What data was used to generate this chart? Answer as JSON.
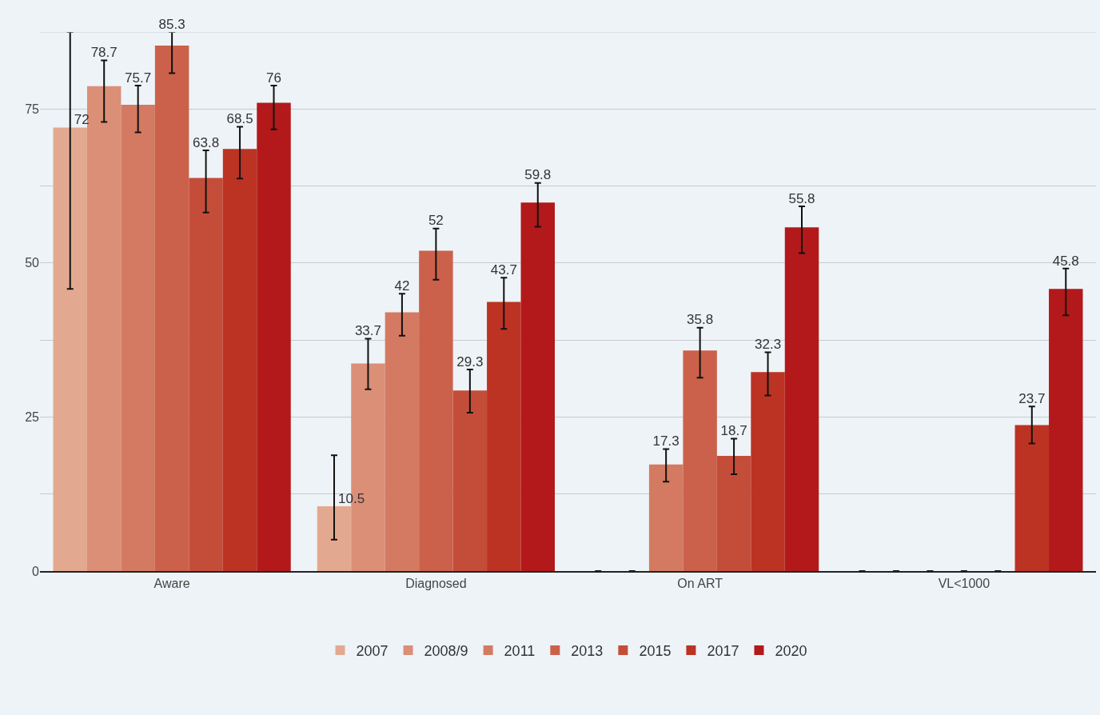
{
  "chart_data": {
    "type": "bar",
    "categories": [
      "Aware",
      "Diagnosed",
      "On ART",
      "VL<1000"
    ],
    "ylim": [
      0,
      87.5
    ],
    "yticks": [
      0,
      {
        "value": 12.5,
        "label": null
      },
      25,
      {
        "value": 37.5,
        "label": null
      },
      50,
      {
        "value": 62.5,
        "label": null
      },
      75,
      {
        "value": 87.5,
        "label": null
      }
    ],
    "grid": "y",
    "legend": "bottom",
    "tick_labels": "xy",
    "series": [
      {
        "name": "2007",
        "color": "#e3a990",
        "values": [
          72,
          10.5,
          0,
          0
        ],
        "value_labels": [
          "72",
          "10.5",
          null,
          null
        ],
        "errors": [
          [
            45.8,
            87.5
          ],
          [
            5.1,
            18.8
          ],
          [
            0,
            0
          ],
          [
            0,
            0
          ]
        ]
      },
      {
        "name": "2008/9",
        "color": "#db8f77",
        "values": [
          78.7,
          33.7,
          0,
          0
        ],
        "value_labels": [
          "78.7",
          "33.7",
          null,
          null
        ],
        "errors": [
          [
            72.9,
            82.9
          ],
          [
            29.5,
            37.7
          ],
          [
            0,
            0
          ],
          [
            0,
            0
          ]
        ]
      },
      {
        "name": "2011",
        "color": "#d47a62",
        "values": [
          75.7,
          42,
          17.3,
          0
        ],
        "value_labels": [
          "75.7",
          "42",
          "17.3",
          null
        ],
        "errors": [
          [
            71.2,
            78.8
          ],
          [
            38.2,
            45.0
          ],
          [
            14.5,
            19.8
          ],
          [
            0,
            0
          ]
        ]
      },
      {
        "name": "2013",
        "color": "#cb614b",
        "values": [
          85.3,
          52,
          35.8,
          0
        ],
        "value_labels": [
          "85.3",
          "52",
          "35.8",
          null
        ],
        "errors": [
          [
            80.8,
            87.5
          ],
          [
            47.3,
            55.6
          ],
          [
            31.4,
            39.5
          ],
          [
            0,
            0
          ]
        ]
      },
      {
        "name": "2015",
        "color": "#c44d3a",
        "values": [
          63.8,
          29.3,
          18.7,
          0
        ],
        "value_labels": [
          "63.8",
          "29.3",
          "18.7",
          null
        ],
        "errors": [
          [
            58.2,
            68.3
          ],
          [
            25.7,
            32.7
          ],
          [
            15.7,
            21.5
          ],
          [
            0,
            0
          ]
        ]
      },
      {
        "name": "2017",
        "color": "#bc3324",
        "values": [
          68.5,
          43.7,
          32.3,
          23.7
        ],
        "value_labels": [
          "68.5",
          "43.7",
          "32.3",
          "23.7"
        ],
        "errors": [
          [
            63.7,
            72.1
          ],
          [
            39.3,
            47.6
          ],
          [
            28.5,
            35.5
          ],
          [
            20.7,
            26.7
          ]
        ]
      },
      {
        "name": "2020",
        "color": "#b3191a",
        "values": [
          76,
          59.8,
          55.8,
          45.8
        ],
        "value_labels": [
          "76",
          "59.8",
          "55.8",
          "45.8"
        ],
        "errors": [
          [
            71.7,
            78.8
          ],
          [
            55.9,
            63.0
          ],
          [
            51.6,
            59.2
          ],
          [
            41.5,
            49.1
          ]
        ]
      }
    ]
  }
}
